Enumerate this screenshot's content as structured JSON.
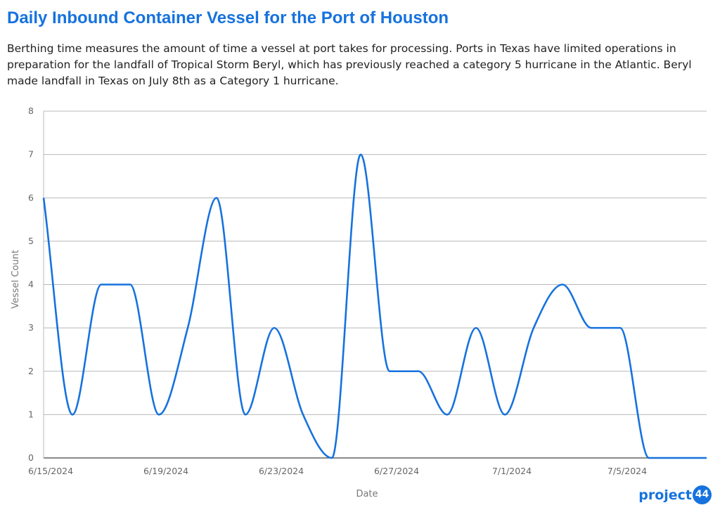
{
  "header": {
    "title": "Daily Inbound Container Vessel for the Port of Houston",
    "subtitle": "Berthing time measures the amount of time a vessel at port takes for processing. Ports in Texas have limited operations in preparation for the  landfall of Tropical Storm Beryl, which has previously reached a category 5 hurricane in the Atlantic. Beryl made landfall in Texas on July 8th as a Category 1 hurricane."
  },
  "logo": {
    "text": "project",
    "badge": "44"
  },
  "chart_data": {
    "type": "line",
    "title": "Daily Inbound Container Vessel for the Port of Houston",
    "xlabel": "Date",
    "ylabel": "Vessel Count",
    "ylim": [
      0,
      8
    ],
    "yticks": [
      0,
      1,
      2,
      3,
      4,
      5,
      6,
      7,
      8
    ],
    "xtick_labels": [
      "6/15/2024",
      "6/19/2024",
      "6/23/2024",
      "6/27/2024",
      "7/1/2024",
      "7/5/2024"
    ],
    "grid": true,
    "line_color": "#1672de",
    "x": [
      "6/15/2024",
      "6/16/2024",
      "6/17/2024",
      "6/18/2024",
      "6/19/2024",
      "6/20/2024",
      "6/21/2024",
      "6/22/2024",
      "6/23/2024",
      "6/24/2024",
      "6/25/2024",
      "6/26/2024",
      "6/27/2024",
      "6/28/2024",
      "6/29/2024",
      "6/30/2024",
      "7/1/2024",
      "7/2/2024",
      "7/3/2024",
      "7/4/2024",
      "7/5/2024",
      "7/6/2024",
      "7/7/2024",
      "7/8/2024"
    ],
    "series": [
      {
        "values": [
          6,
          1,
          4,
          4,
          1,
          3,
          6,
          1,
          3,
          1,
          0,
          7,
          2,
          2,
          1,
          3,
          1,
          3,
          4,
          3,
          3,
          0,
          0,
          0
        ]
      }
    ]
  }
}
